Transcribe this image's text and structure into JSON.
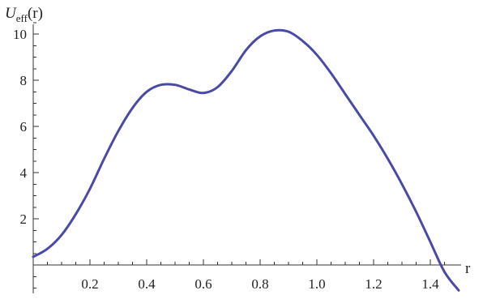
{
  "chart_data": {
    "type": "line",
    "title": "",
    "xlabel": "r",
    "ylabel": {
      "main": "U",
      "sub": "eff",
      "arg": "(r)"
    },
    "xlim": [
      0,
      1.5
    ],
    "ylim": [
      -1.2,
      11
    ],
    "x_ticks": [
      0.2,
      0.4,
      0.6,
      0.8,
      1.0,
      1.2,
      1.4
    ],
    "x_tick_labels": [
      "0.2",
      "0.4",
      "0.6",
      "0.8",
      "1.0",
      "1.2",
      "1.4"
    ],
    "y_ticks": [
      2,
      4,
      6,
      8,
      10
    ],
    "y_tick_labels": [
      "2",
      "4",
      "6",
      "8",
      "10"
    ],
    "grid": false,
    "legend": "none",
    "line_color": "#4a4aa6",
    "series": [
      {
        "x": [
          0,
          0.05,
          0.1,
          0.15,
          0.2,
          0.25,
          0.3,
          0.35,
          0.4,
          0.45,
          0.5,
          0.55,
          0.6,
          0.65,
          0.7,
          0.75,
          0.8,
          0.85,
          0.9,
          0.95,
          1.0,
          1.05,
          1.1,
          1.15,
          1.2,
          1.25,
          1.3,
          1.35,
          1.4,
          1.45,
          1.5
        ],
        "values": [
          0.35,
          0.7,
          1.3,
          2.2,
          3.3,
          4.6,
          5.8,
          6.8,
          7.5,
          7.8,
          7.8,
          7.6,
          7.45,
          7.7,
          8.4,
          9.3,
          9.9,
          10.15,
          10.1,
          9.7,
          9.1,
          8.3,
          7.4,
          6.5,
          5.6,
          4.6,
          3.5,
          2.3,
          1.0,
          -0.3,
          -1.1
        ]
      }
    ]
  }
}
